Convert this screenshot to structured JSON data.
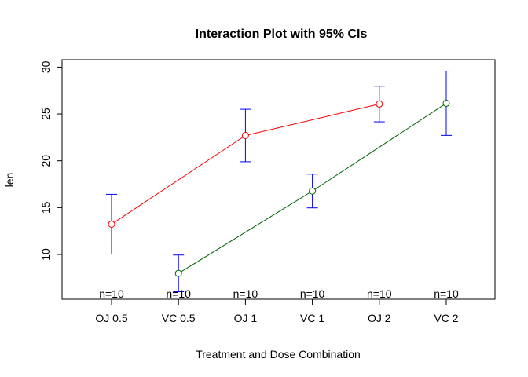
{
  "chart_data": {
    "type": "line",
    "title": "Interaction Plot with 95% CIs",
    "xlabel": "Treatment and Dose Combination",
    "ylabel": "len",
    "categories": [
      "OJ 0.5",
      "VC 0.5",
      "OJ 1",
      "VC 1",
      "OJ 2",
      "VC 2"
    ],
    "ylim": [
      5,
      30
    ],
    "yticks": [
      10,
      15,
      20,
      25,
      30
    ],
    "grid": false,
    "series": [
      {
        "color": "#ff0000",
        "points": [
          {
            "category": "OJ 0.5",
            "y": 13.23
          },
          {
            "category": "OJ 1",
            "y": 22.7
          },
          {
            "category": "OJ 2",
            "y": 26.06
          }
        ]
      },
      {
        "color": "#006400",
        "points": [
          {
            "category": "VC 0.5",
            "y": 7.98
          },
          {
            "category": "VC 1",
            "y": 16.77
          },
          {
            "category": "VC 2",
            "y": 26.14
          }
        ]
      }
    ],
    "error_bars": {
      "color": "#0000ff",
      "items": [
        {
          "category": "OJ 0.5",
          "lower": 10.04,
          "upper": 16.42
        },
        {
          "category": "VC 0.5",
          "lower": 6.02,
          "upper": 9.94
        },
        {
          "category": "OJ 1",
          "lower": 19.9,
          "upper": 25.5
        },
        {
          "category": "VC 1",
          "lower": 14.97,
          "upper": 18.57
        },
        {
          "category": "OJ 2",
          "lower": 24.16,
          "upper": 27.96
        },
        {
          "category": "VC 2",
          "lower": 22.71,
          "upper": 29.57
        }
      ]
    },
    "n_labels": [
      "n=10",
      "n=10",
      "n=10",
      "n=10",
      "n=10",
      "n=10"
    ]
  }
}
